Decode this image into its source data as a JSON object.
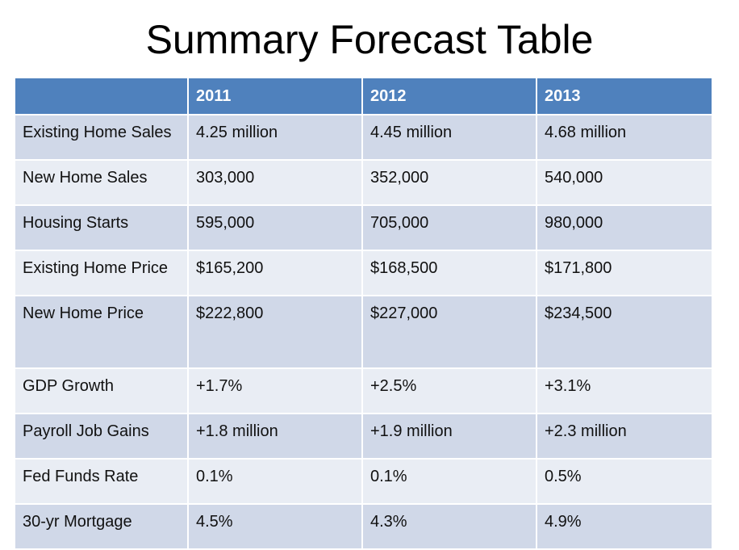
{
  "title": "Summary Forecast Table",
  "table": {
    "header": [
      "",
      "2011",
      "2012",
      "2013"
    ],
    "rows": [
      [
        "Existing Home Sales",
        "4.25 million",
        "4.45 million",
        "4.68 million"
      ],
      [
        "New Home Sales",
        "303,000",
        "352,000",
        "540,000"
      ],
      [
        "Housing Starts",
        "595,000",
        "705,000",
        "980,000"
      ],
      [
        "Existing Home Price",
        "$165,200",
        "$168,500",
        "$171,800"
      ],
      [
        "New Home Price",
        "$222,800",
        "$227,000",
        "$234,500"
      ],
      [
        "GDP Growth",
        "+1.7%",
        "+2.5%",
        "+3.1%"
      ],
      [
        "Payroll Job Gains",
        "+1.8 million",
        "+1.9 million",
        "+2.3 million"
      ],
      [
        "Fed Funds Rate",
        "0.1%",
        "0.1%",
        "0.5%"
      ],
      [
        "30-yr Mortgage",
        "4.5%",
        "4.3%",
        "4.9%"
      ]
    ]
  },
  "colors": {
    "header_bg": "#4f81bd",
    "header_text": "#ffffff",
    "row_band_dark": "#d0d8e8",
    "row_band_light": "#e9edf4"
  }
}
